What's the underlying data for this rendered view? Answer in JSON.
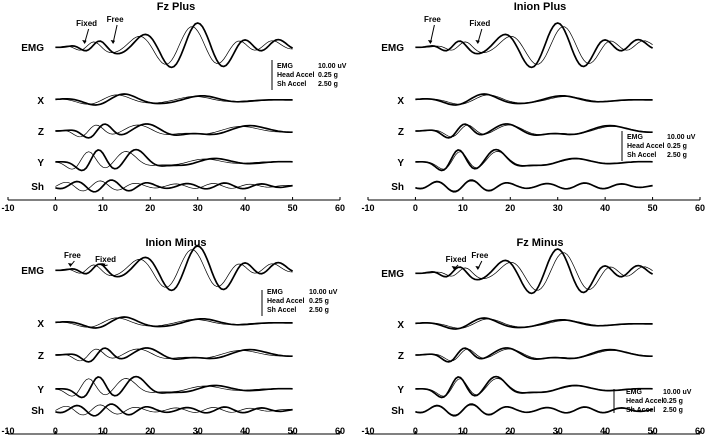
{
  "chart_data": [
    {
      "type": "line",
      "title": "Fz Plus",
      "x_ticks": [
        "-10",
        "0",
        "10",
        "20",
        "30",
        "40",
        "50",
        "60"
      ],
      "xlim": [
        -10,
        60
      ],
      "channels": [
        "EMG",
        "X",
        "Z",
        "Y",
        "Sh"
      ],
      "series": [
        {
          "name": "Fixed",
          "style": "bold",
          "marker_label": "Fixed",
          "marker_x": 7
        },
        {
          "name": "Free",
          "style": "thin",
          "marker_label": "Free",
          "marker_x": 13
        }
      ],
      "scale": {
        "lines": [
          "EMG",
          "Head Accel",
          "Sh Accel"
        ],
        "values": [
          "10.00 uV",
          "0.25 g",
          "2.50 g"
        ],
        "position": "right-of-EMG"
      }
    },
    {
      "type": "line",
      "title": "Inion Plus",
      "x_ticks": [
        "-10",
        "0",
        "10",
        "20",
        "30",
        "40",
        "50",
        "60"
      ],
      "xlim": [
        -10,
        60
      ],
      "channels": [
        "EMG",
        "X",
        "Z",
        "Y",
        "Sh"
      ],
      "series": [
        {
          "name": "Fixed",
          "style": "bold",
          "marker_label": "Fixed",
          "marker_x": 14
        },
        {
          "name": "Free",
          "style": "thin",
          "marker_label": "Free",
          "marker_x": 4
        }
      ],
      "scale": {
        "lines": [
          "EMG",
          "Head Accel",
          "Sh Accel"
        ],
        "values": [
          "10.00 uV",
          "0.25 g",
          "2.50 g"
        ],
        "position": "right-of-Z"
      }
    },
    {
      "type": "line",
      "title": "Inion Minus",
      "x_ticks": [
        "-10",
        "0",
        "10",
        "20",
        "30",
        "40",
        "50",
        "60"
      ],
      "xlim": [
        -10,
        60
      ],
      "channels": [
        "EMG",
        "X",
        "Z",
        "Y",
        "Sh"
      ],
      "series": [
        {
          "name": "Fixed",
          "style": "bold",
          "marker_label": "Fixed",
          "marker_x": 11
        },
        {
          "name": "Free",
          "style": "thin",
          "marker_label": "Free",
          "marker_x": 4
        }
      ],
      "scale": {
        "lines": [
          "EMG",
          "Head Accel",
          "Sh Accel"
        ],
        "values": [
          "10.00 uV",
          "0.25 g",
          "2.50 g"
        ],
        "position": "right-of-EMG"
      }
    },
    {
      "type": "line",
      "title": "Fz Minus",
      "x_ticks": [
        "-10",
        "0",
        "10",
        "20",
        "30",
        "40",
        "50",
        "60"
      ],
      "xlim": [
        -10,
        60
      ],
      "channels": [
        "EMG",
        "X",
        "Z",
        "Y",
        "Sh"
      ],
      "series": [
        {
          "name": "Fixed",
          "style": "bold",
          "marker_label": "Fixed",
          "marker_x": 9
        },
        {
          "name": "Free",
          "style": "thin",
          "marker_label": "Free",
          "marker_x": 14
        }
      ],
      "scale": {
        "lines": [
          "EMG",
          "Head Accel",
          "Sh Accel"
        ],
        "values": [
          "10.00 uV",
          "0.25 g",
          "2.50 g"
        ],
        "position": "right-of-Y"
      }
    }
  ]
}
